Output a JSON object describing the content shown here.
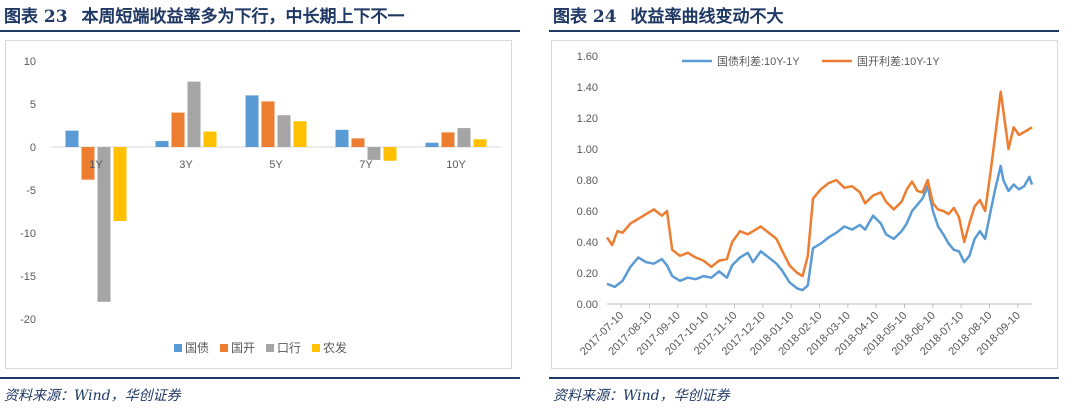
{
  "left": {
    "figure_no": "图表 23",
    "title": "本周短端收益率多为下行，中长期上下不一",
    "source": "资料来源：Wind，华创证券",
    "colors": {
      "title": "#1f3864"
    }
  },
  "right": {
    "figure_no": "图表 24",
    "title": "收益率曲线变动不大",
    "source": "资料来源：Wind，华创证券"
  },
  "chart_data": [
    {
      "type": "bar",
      "categories": [
        "1Y",
        "3Y",
        "5Y",
        "7Y",
        "10Y"
      ],
      "series": [
        {
          "name": "国债",
          "color": "#5b9bd5",
          "values": [
            1.9,
            0.7,
            6.0,
            2.0,
            0.5
          ]
        },
        {
          "name": "国开",
          "color": "#ed7d31",
          "values": [
            -3.8,
            4.0,
            5.3,
            1.0,
            1.7
          ]
        },
        {
          "name": "口行",
          "color": "#a5a5a5",
          "values": [
            -18.0,
            7.6,
            3.7,
            -1.5,
            2.2
          ]
        },
        {
          "name": "农发",
          "color": "#ffc000",
          "values": [
            -8.6,
            1.8,
            3.0,
            -1.6,
            0.9
          ]
        }
      ],
      "ylim": [
        -20,
        10
      ],
      "yticks": [
        "10",
        "5",
        "0",
        "-5",
        "-10",
        "-15",
        "-20"
      ],
      "legend_position": "bottom",
      "grid": false
    },
    {
      "type": "line",
      "x_labels": [
        "2017-07-10",
        "2017-08-10",
        "2017-09-10",
        "2017-10-10",
        "2017-11-10",
        "2017-12-10",
        "2018-01-10",
        "2018-02-10",
        "2018-03-10",
        "2018-04-10",
        "2018-05-10",
        "2018-06-10",
        "2018-07-10",
        "2018-08-10",
        "2018-09-10"
      ],
      "yticks": [
        "0.00",
        "0.20",
        "0.40",
        "0.60",
        "0.80",
        "1.00",
        "1.20",
        "1.40",
        "1.60"
      ],
      "ylim": [
        0,
        1.6
      ],
      "legend_position": "top",
      "grid": false,
      "series": [
        {
          "name": "国债利差:10Y-1Y",
          "color": "#5b9bd5",
          "points": [
            [
              0,
              0.13
            ],
            [
              3,
              0.11
            ],
            [
              6,
              0.15
            ],
            [
              9,
              0.24
            ],
            [
              12,
              0.3
            ],
            [
              15,
              0.27
            ],
            [
              18,
              0.26
            ],
            [
              21,
              0.29
            ],
            [
              23,
              0.25
            ],
            [
              25,
              0.18
            ],
            [
              28,
              0.15
            ],
            [
              31,
              0.17
            ],
            [
              34,
              0.16
            ],
            [
              37,
              0.18
            ],
            [
              40,
              0.17
            ],
            [
              43,
              0.21
            ],
            [
              46,
              0.17
            ],
            [
              48,
              0.25
            ],
            [
              51,
              0.3
            ],
            [
              54,
              0.33
            ],
            [
              56,
              0.27
            ],
            [
              59,
              0.34
            ],
            [
              62,
              0.3
            ],
            [
              65,
              0.26
            ],
            [
              67,
              0.22
            ],
            [
              70,
              0.14
            ],
            [
              73,
              0.1
            ],
            [
              75,
              0.09
            ],
            [
              77,
              0.12
            ],
            [
              79,
              0.36
            ],
            [
              82,
              0.39
            ],
            [
              85,
              0.43
            ],
            [
              88,
              0.46
            ],
            [
              91,
              0.5
            ],
            [
              94,
              0.48
            ],
            [
              97,
              0.51
            ],
            [
              99,
              0.48
            ],
            [
              102,
              0.57
            ],
            [
              105,
              0.52
            ],
            [
              107,
              0.45
            ],
            [
              110,
              0.42
            ],
            [
              113,
              0.47
            ],
            [
              115,
              0.52
            ],
            [
              117,
              0.6
            ],
            [
              119,
              0.64
            ],
            [
              121,
              0.68
            ],
            [
              123,
              0.76
            ],
            [
              125,
              0.6
            ],
            [
              127,
              0.5
            ],
            [
              129,
              0.45
            ],
            [
              131,
              0.39
            ],
            [
              133,
              0.35
            ],
            [
              135,
              0.34
            ],
            [
              137,
              0.27
            ],
            [
              139,
              0.31
            ],
            [
              141,
              0.42
            ],
            [
              143,
              0.47
            ],
            [
              145,
              0.42
            ],
            [
              147,
              0.59
            ],
            [
              149,
              0.75
            ],
            [
              151,
              0.89
            ],
            [
              152,
              0.8
            ],
            [
              154,
              0.73
            ],
            [
              156,
              0.77
            ],
            [
              158,
              0.74
            ],
            [
              160,
              0.76
            ],
            [
              162,
              0.82
            ],
            [
              163,
              0.77
            ]
          ]
        },
        {
          "name": "国开利差:10Y-1Y",
          "color": "#ed7d31",
          "points": [
            [
              0,
              0.43
            ],
            [
              2,
              0.38
            ],
            [
              4,
              0.47
            ],
            [
              6,
              0.46
            ],
            [
              9,
              0.52
            ],
            [
              12,
              0.55
            ],
            [
              15,
              0.58
            ],
            [
              18,
              0.61
            ],
            [
              21,
              0.57
            ],
            [
              23,
              0.6
            ],
            [
              25,
              0.35
            ],
            [
              28,
              0.31
            ],
            [
              31,
              0.33
            ],
            [
              34,
              0.3
            ],
            [
              37,
              0.28
            ],
            [
              40,
              0.24
            ],
            [
              43,
              0.28
            ],
            [
              46,
              0.29
            ],
            [
              48,
              0.4
            ],
            [
              51,
              0.47
            ],
            [
              54,
              0.45
            ],
            [
              56,
              0.47
            ],
            [
              59,
              0.5
            ],
            [
              62,
              0.46
            ],
            [
              65,
              0.42
            ],
            [
              67,
              0.35
            ],
            [
              70,
              0.25
            ],
            [
              73,
              0.2
            ],
            [
              75,
              0.18
            ],
            [
              77,
              0.31
            ],
            [
              79,
              0.68
            ],
            [
              82,
              0.74
            ],
            [
              85,
              0.78
            ],
            [
              88,
              0.8
            ],
            [
              91,
              0.75
            ],
            [
              94,
              0.76
            ],
            [
              97,
              0.72
            ],
            [
              99,
              0.65
            ],
            [
              102,
              0.7
            ],
            [
              105,
              0.72
            ],
            [
              107,
              0.66
            ],
            [
              110,
              0.61
            ],
            [
              113,
              0.66
            ],
            [
              115,
              0.74
            ],
            [
              117,
              0.79
            ],
            [
              119,
              0.73
            ],
            [
              121,
              0.72
            ],
            [
              123,
              0.8
            ],
            [
              125,
              0.65
            ],
            [
              127,
              0.61
            ],
            [
              129,
              0.6
            ],
            [
              131,
              0.58
            ],
            [
              133,
              0.62
            ],
            [
              135,
              0.56
            ],
            [
              137,
              0.4
            ],
            [
              139,
              0.52
            ],
            [
              141,
              0.63
            ],
            [
              143,
              0.67
            ],
            [
              145,
              0.6
            ],
            [
              147,
              0.84
            ],
            [
              149,
              1.1
            ],
            [
              151,
              1.37
            ],
            [
              152,
              1.25
            ],
            [
              154,
              1.0
            ],
            [
              156,
              1.14
            ],
            [
              158,
              1.09
            ],
            [
              160,
              1.11
            ],
            [
              162,
              1.13
            ],
            [
              163,
              1.14
            ]
          ]
        }
      ]
    }
  ]
}
